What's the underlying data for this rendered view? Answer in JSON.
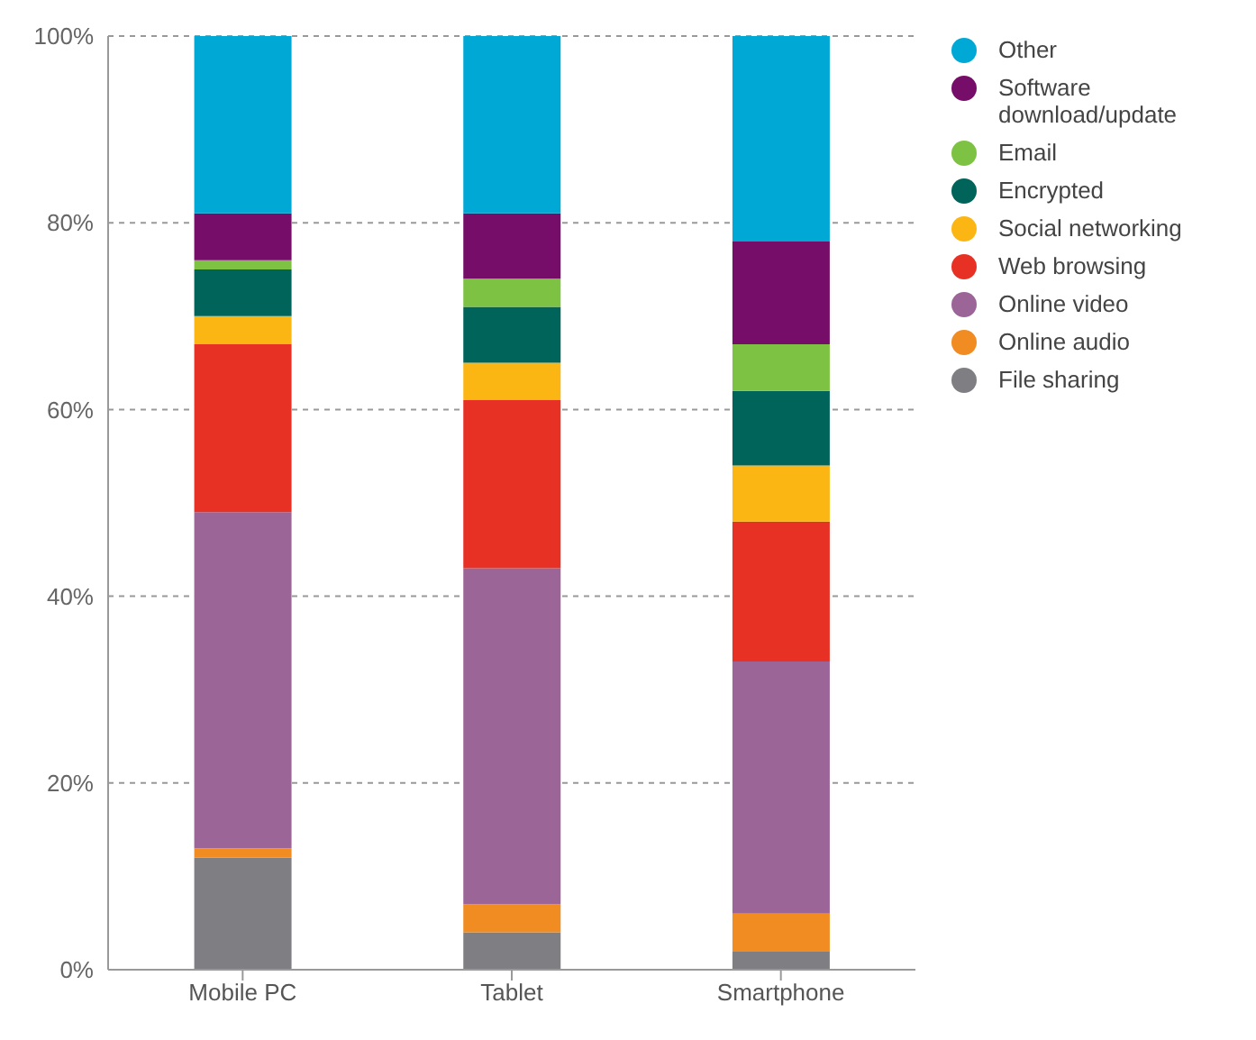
{
  "chart_data": {
    "type": "bar",
    "stacked": true,
    "categories": [
      "Mobile PC",
      "Tablet",
      "Smartphone"
    ],
    "series": [
      {
        "name": "File sharing",
        "color": "#7f7f83",
        "values": [
          12,
          4,
          2
        ]
      },
      {
        "name": "Online audio",
        "color": "#f08c21",
        "values": [
          1,
          3,
          4
        ]
      },
      {
        "name": "Online video",
        "color": "#9b6598",
        "values": [
          36,
          36,
          27
        ]
      },
      {
        "name": "Web browsing",
        "color": "#e83125",
        "values": [
          18,
          18,
          15
        ]
      },
      {
        "name": "Social networking",
        "color": "#fbb614",
        "values": [
          3,
          4,
          6
        ]
      },
      {
        "name": "Encrypted",
        "color": "#00645a",
        "values": [
          5,
          6,
          8
        ]
      },
      {
        "name": "Email",
        "color": "#7dc242",
        "values": [
          1,
          3,
          5
        ]
      },
      {
        "name": "Software download/update",
        "color": "#760d68",
        "values": [
          5,
          7,
          11
        ]
      },
      {
        "name": "Other",
        "color": "#00a8d6",
        "values": [
          19,
          19,
          22
        ]
      }
    ],
    "ylim": [
      0,
      100
    ],
    "yticks": [
      {
        "value": 0,
        "label": "0%"
      },
      {
        "value": 20,
        "label": "20%"
      },
      {
        "value": 40,
        "label": "40%"
      },
      {
        "value": 60,
        "label": "60%"
      },
      {
        "value": 80,
        "label": "80%"
      },
      {
        "value": 100,
        "label": "100%"
      }
    ],
    "grid": "y",
    "legend": "top right"
  }
}
